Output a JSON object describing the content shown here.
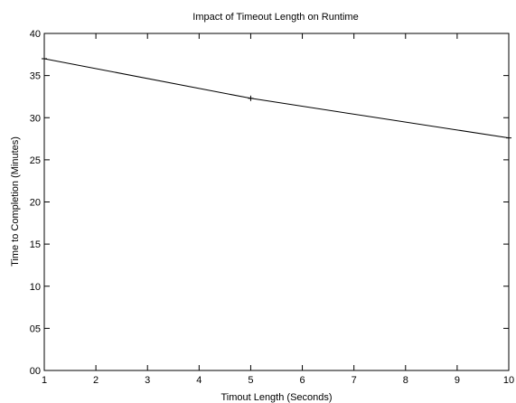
{
  "chart_data": {
    "type": "line",
    "title": "Impact of Timeout Length on Runtime",
    "xlabel": "Timout Length (Seconds)",
    "ylabel": "Time to Completion (Minutes)",
    "xlim": [
      1,
      10
    ],
    "ylim": [
      0,
      40
    ],
    "x_ticks": [
      1,
      2,
      3,
      4,
      5,
      6,
      7,
      8,
      9,
      10
    ],
    "x_tick_labels": [
      "1",
      "2",
      "3",
      "4",
      "5",
      "6",
      "7",
      "8",
      "9",
      "10"
    ],
    "y_ticks": [
      0,
      5,
      10,
      15,
      20,
      25,
      30,
      35,
      40
    ],
    "y_tick_labels": [
      "00",
      "05",
      "10",
      "15",
      "20",
      "25",
      "30",
      "35",
      "40"
    ],
    "grid": false,
    "legend": "none",
    "series": [
      {
        "x": [
          1,
          5,
          10
        ],
        "y": [
          37.0,
          32.3,
          27.6
        ],
        "color": "#000000",
        "marker": "plus"
      }
    ]
  }
}
